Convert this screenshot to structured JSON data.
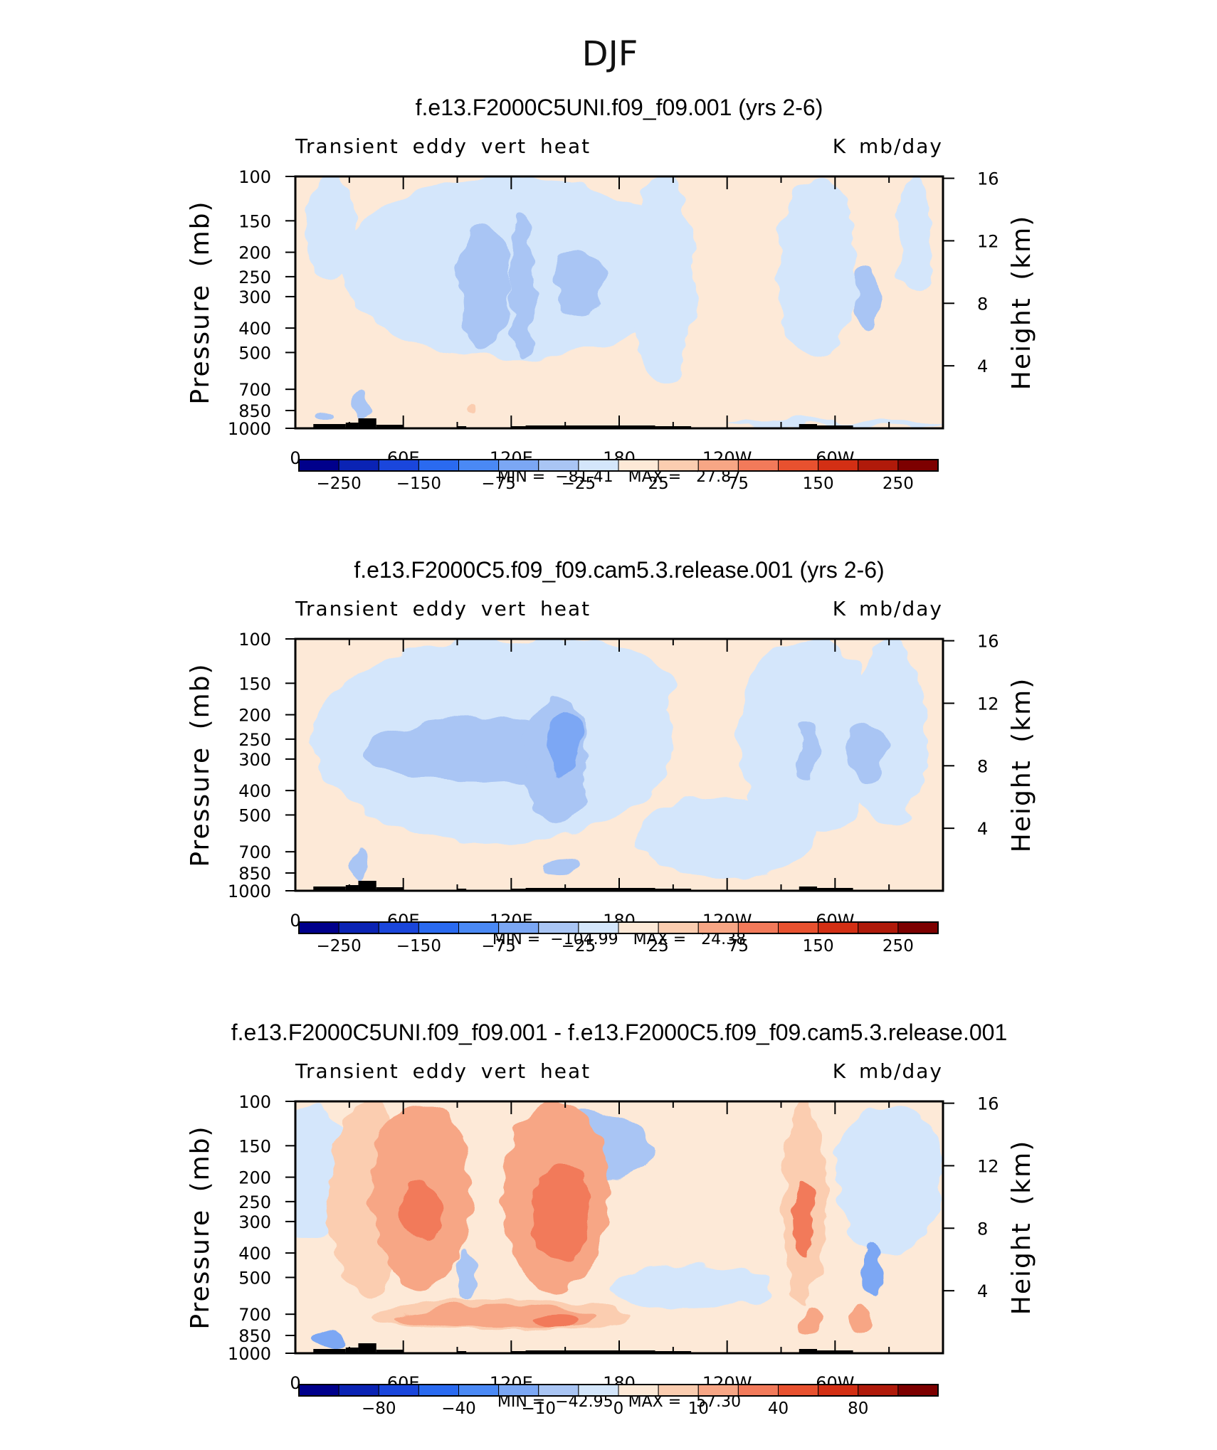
{
  "figure": {
    "title": "DJF"
  },
  "colors": {
    "palette": [
      "#00008b",
      "#0a23b4",
      "#1a46dc",
      "#2a6af0",
      "#4a89f5",
      "#7ba7f4",
      "#a9c5f4",
      "#d4e6fb",
      "#fde9d7",
      "#fbcdb0",
      "#f7a685",
      "#f27a5a",
      "#e8512f",
      "#d32f14",
      "#b01a0a",
      "#7d0000"
    ],
    "terrain": "#000000"
  },
  "chart_data": [
    {
      "type": "contour",
      "panel_id": "panel-1",
      "title": "f.e13.F2000C5UNI.f09_f09.001 (yrs 2-6)",
      "left_label": "Transient eddy vert heat",
      "right_label": "K mb/day",
      "ylabel": "Pressure (mb)",
      "ylabel_right": "Height (km)",
      "x_ticks": [
        "0",
        "60E",
        "120E",
        "180",
        "120W",
        "60W"
      ],
      "y_ticks": [
        "100",
        "150",
        "200",
        "250",
        "300",
        "400",
        "500",
        "700",
        "850",
        "1000"
      ],
      "y_ticks_right": [
        "16",
        "12",
        "8",
        "4"
      ],
      "stats_text": "MIN =  −81.41   MAX =   27.87",
      "min": -81.41,
      "max": 27.87,
      "colorbar_labels": [
        "−250",
        "−150",
        "−75",
        "−25",
        "25",
        "75",
        "150",
        "250"
      ],
      "blobs": [
        {
          "lon": 120,
          "p": 200,
          "rx": 95,
          "rp": 330,
          "level": 7
        },
        {
          "lon": 205,
          "p": 320,
          "rx": 18,
          "rp": 340,
          "level": 7
        },
        {
          "lon": 290,
          "p": 280,
          "rx": 22,
          "rp": 260,
          "level": 7
        },
        {
          "lon": 345,
          "p": 160,
          "rx": 10,
          "rp": 130,
          "level": 7
        },
        {
          "lon": 20,
          "p": 150,
          "rx": 14,
          "rp": 120,
          "level": 7
        },
        {
          "lon": 300,
          "p": 960,
          "rx": 60,
          "rp": 30,
          "level": 7
        },
        {
          "lon": 105,
          "p": 320,
          "rx": 14,
          "rp": 170,
          "level": 6
        },
        {
          "lon": 126,
          "p": 330,
          "rx": 7,
          "rp": 190,
          "level": 6
        },
        {
          "lon": 158,
          "p": 275,
          "rx": 14,
          "rp": 80,
          "level": 6
        },
        {
          "lon": 318,
          "p": 320,
          "rx": 8,
          "rp": 90,
          "level": 6
        },
        {
          "lon": 36,
          "p": 810,
          "rx": 5,
          "rp": 120,
          "level": 6
        },
        {
          "lon": 16,
          "p": 880,
          "rx": 5,
          "rp": 40,
          "level": 6
        },
        {
          "lon": 98,
          "p": 840,
          "rx": 3,
          "rp": 40,
          "level": 9
        }
      ]
    },
    {
      "type": "contour",
      "panel_id": "panel-2",
      "title": "f.e13.F2000C5.f09_f09.cam5.3.release.001 (yrs 2-6)",
      "left_label": "Transient eddy vert heat",
      "right_label": "K mb/day",
      "ylabel": "Pressure (mb)",
      "ylabel_right": "Height (km)",
      "x_ticks": [
        "0",
        "60E",
        "120E",
        "180",
        "120W",
        "60W"
      ],
      "y_ticks": [
        "100",
        "150",
        "200",
        "250",
        "300",
        "400",
        "500",
        "700",
        "850",
        "1000"
      ],
      "y_ticks_right": [
        "16",
        "12",
        "8",
        "4"
      ],
      "stats_text": "MIN =  −104.99   MAX =   24.38",
      "min": -104.99,
      "max": 24.38,
      "colorbar_labels": [
        "−250",
        "−150",
        "−75",
        "−25",
        "25",
        "75",
        "150",
        "250"
      ],
      "blobs": [
        {
          "lon": 110,
          "p": 310,
          "rx": 100,
          "rp": 330,
          "level": 7
        },
        {
          "lon": 240,
          "p": 660,
          "rx": 50,
          "rp": 230,
          "level": 7
        },
        {
          "lon": 285,
          "p": 300,
          "rx": 40,
          "rp": 300,
          "level": 7
        },
        {
          "lon": 330,
          "p": 300,
          "rx": 20,
          "rp": 260,
          "level": 7
        },
        {
          "lon": 150,
          "p": 180,
          "rx": 60,
          "rp": 80,
          "level": 7
        },
        {
          "lon": 100,
          "p": 290,
          "rx": 60,
          "rp": 80,
          "level": 6
        },
        {
          "lon": 145,
          "p": 360,
          "rx": 18,
          "rp": 190,
          "level": 6
        },
        {
          "lon": 148,
          "p": 800,
          "rx": 12,
          "rp": 70,
          "level": 6
        },
        {
          "lon": 285,
          "p": 300,
          "rx": 6,
          "rp": 80,
          "level": 6
        },
        {
          "lon": 318,
          "p": 290,
          "rx": 10,
          "rp": 80,
          "level": 6
        },
        {
          "lon": 150,
          "p": 275,
          "rx": 10,
          "rp": 80,
          "level": 5
        },
        {
          "lon": 36,
          "p": 810,
          "rx": 5,
          "rp": 100,
          "level": 6
        }
      ]
    },
    {
      "type": "contour",
      "panel_id": "panel-3",
      "title": "f.e13.F2000C5UNI.f09_f09.001 - f.e13.F2000C5.f09_f09.cam5.3.release.001",
      "left_label": "Transient eddy vert heat",
      "right_label": "K mb/day",
      "ylabel": "Pressure (mb)",
      "ylabel_right": "Height (km)",
      "x_ticks": [
        "0",
        "60E",
        "120E",
        "180",
        "120W",
        "60W"
      ],
      "y_ticks": [
        "100",
        "150",
        "200",
        "250",
        "300",
        "400",
        "500",
        "700",
        "850",
        "1000"
      ],
      "y_ticks_right": [
        "16",
        "12",
        "8",
        "4"
      ],
      "stats_text": "MIN =  −42.95   MAX =   57.30",
      "min": -42.95,
      "max": 57.3,
      "colorbar_labels": [
        "−80",
        "−40",
        "−10",
        "0",
        "10",
        "40",
        "80"
      ],
      "blobs": [
        {
          "lon": 8,
          "p": 220,
          "rx": 22,
          "rp": 130,
          "level": 7
        },
        {
          "lon": 330,
          "p": 220,
          "rx": 30,
          "rp": 180,
          "level": 7
        },
        {
          "lon": 160,
          "p": 160,
          "rx": 40,
          "rp": 50,
          "level": 6
        },
        {
          "lon": 95,
          "p": 500,
          "rx": 6,
          "rp": 110,
          "level": 6
        },
        {
          "lon": 220,
          "p": 560,
          "rx": 45,
          "rp": 120,
          "level": 7
        },
        {
          "lon": 320,
          "p": 470,
          "rx": 6,
          "rp": 110,
          "level": 5
        },
        {
          "lon": 18,
          "p": 880,
          "rx": 8,
          "rp": 70,
          "level": 5
        },
        {
          "lon": 40,
          "p": 330,
          "rx": 22,
          "rp": 260,
          "level": 9
        },
        {
          "lon": 70,
          "p": 320,
          "rx": 28,
          "rp": 220,
          "level": 10
        },
        {
          "lon": 70,
          "p": 290,
          "rx": 12,
          "rp": 80,
          "level": 11
        },
        {
          "lon": 145,
          "p": 320,
          "rx": 30,
          "rp": 240,
          "level": 10
        },
        {
          "lon": 148,
          "p": 300,
          "rx": 16,
          "rp": 120,
          "level": 11
        },
        {
          "lon": 115,
          "p": 720,
          "rx": 70,
          "rp": 110,
          "level": 9
        },
        {
          "lon": 110,
          "p": 730,
          "rx": 55,
          "rp": 80,
          "level": 10
        },
        {
          "lon": 145,
          "p": 745,
          "rx": 12,
          "rp": 50,
          "level": 11
        },
        {
          "lon": 283,
          "p": 350,
          "rx": 12,
          "rp": 300,
          "level": 9
        },
        {
          "lon": 283,
          "p": 310,
          "rx": 6,
          "rp": 100,
          "level": 11
        },
        {
          "lon": 286,
          "p": 750,
          "rx": 6,
          "rp": 90,
          "level": 10
        },
        {
          "lon": 314,
          "p": 750,
          "rx": 6,
          "rp": 90,
          "level": 10
        },
        {
          "lon": 240,
          "p": 380,
          "rx": 30,
          "rp": 60,
          "level": 8
        }
      ]
    }
  ]
}
